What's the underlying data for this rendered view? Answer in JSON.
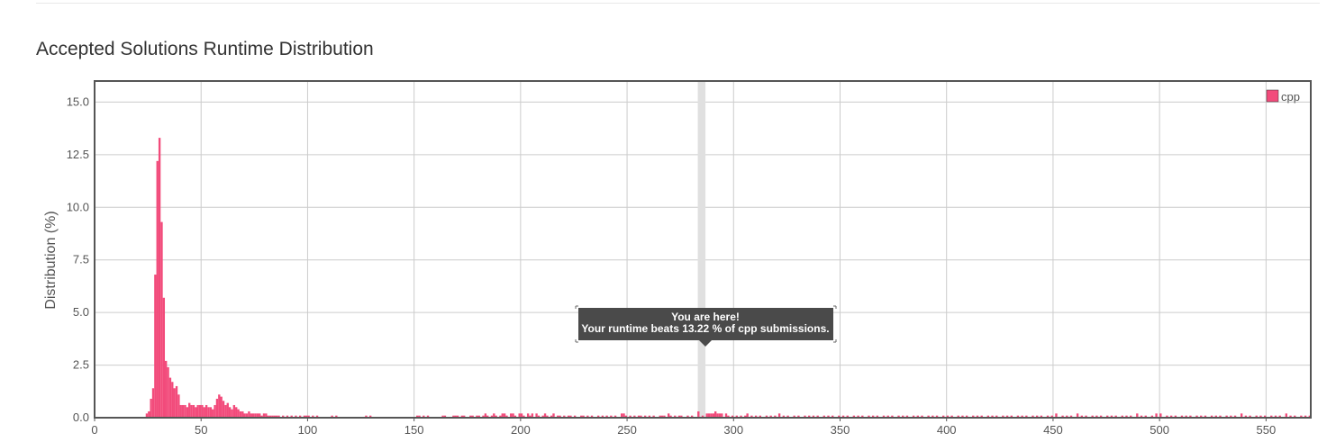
{
  "chart_data": {
    "type": "bar",
    "title": "Accepted Solutions Runtime Distribution",
    "xlabel": "",
    "ylabel": "Distribution (%)",
    "xlim": [
      0,
      571
    ],
    "ylim": [
      0,
      16
    ],
    "xticks": [
      "0",
      "50",
      "100",
      "150",
      "200",
      "250",
      "300",
      "350",
      "400",
      "450",
      "500",
      "550"
    ],
    "yticks": [
      "0.0",
      "2.5",
      "5.0",
      "7.5",
      "10.0",
      "12.5",
      "15.0"
    ],
    "grid": true,
    "legend_position": "top-right",
    "colors": {
      "bar": "#f24b7b",
      "highlight_band": "#e0e0e0",
      "tooltip_bg": "#4a4a4a",
      "frame": "#555555",
      "grid": "#cccccc"
    },
    "series": [
      {
        "name": "cpp",
        "bin_width": 1,
        "values": [
          [
            24,
            0.2
          ],
          [
            25,
            0.3
          ],
          [
            26,
            0.9
          ],
          [
            27,
            1.4
          ],
          [
            28,
            6.8
          ],
          [
            29,
            12.2
          ],
          [
            30,
            13.3
          ],
          [
            31,
            9.3
          ],
          [
            32,
            5.7
          ],
          [
            33,
            2.7
          ],
          [
            34,
            2.4
          ],
          [
            35,
            1.9
          ],
          [
            36,
            1.7
          ],
          [
            37,
            1.4
          ],
          [
            38,
            1.5
          ],
          [
            39,
            1.1
          ],
          [
            40,
            0.6
          ],
          [
            41,
            0.6
          ],
          [
            42,
            0.6
          ],
          [
            43,
            0.5
          ],
          [
            44,
            0.7
          ],
          [
            45,
            0.6
          ],
          [
            46,
            0.6
          ],
          [
            47,
            0.5
          ],
          [
            48,
            0.6
          ],
          [
            49,
            0.6
          ],
          [
            50,
            0.6
          ],
          [
            51,
            0.5
          ],
          [
            52,
            0.6
          ],
          [
            53,
            0.5
          ],
          [
            54,
            0.5
          ],
          [
            55,
            0.4
          ],
          [
            56,
            0.6
          ],
          [
            57,
            0.9
          ],
          [
            58,
            1.1
          ],
          [
            59,
            1.0
          ],
          [
            60,
            0.8
          ],
          [
            61,
            0.6
          ],
          [
            62,
            0.7
          ],
          [
            63,
            0.5
          ],
          [
            64,
            0.4
          ],
          [
            65,
            0.6
          ],
          [
            66,
            0.5
          ],
          [
            67,
            0.4
          ],
          [
            68,
            0.3
          ],
          [
            69,
            0.3
          ],
          [
            70,
            0.2
          ],
          [
            71,
            0.2
          ],
          [
            72,
            0.3
          ],
          [
            73,
            0.2
          ],
          [
            74,
            0.2
          ],
          [
            75,
            0.2
          ],
          [
            76,
            0.2
          ],
          [
            77,
            0.2
          ],
          [
            78,
            0.1
          ],
          [
            79,
            0.2
          ],
          [
            80,
            0.2
          ],
          [
            81,
            0.1
          ],
          [
            82,
            0.1
          ],
          [
            83,
            0.1
          ],
          [
            84,
            0.1
          ],
          [
            85,
            0.1
          ],
          [
            86,
            0.1
          ],
          [
            88,
            0.1
          ],
          [
            90,
            0.1
          ],
          [
            92,
            0.1
          ],
          [
            94,
            0.1
          ],
          [
            96,
            0.1
          ],
          [
            98,
            0.1
          ],
          [
            99,
            0.1
          ],
          [
            100,
            0.1
          ],
          [
            102,
            0.1
          ],
          [
            104,
            0.1
          ],
          [
            111,
            0.1
          ],
          [
            113,
            0.1
          ],
          [
            127,
            0.1
          ],
          [
            129,
            0.1
          ],
          [
            151,
            0.1
          ],
          [
            152,
            0.1
          ],
          [
            154,
            0.1
          ],
          [
            156,
            0.1
          ],
          [
            163,
            0.1
          ],
          [
            164,
            0.1
          ],
          [
            168,
            0.1
          ],
          [
            169,
            0.1
          ],
          [
            170,
            0.1
          ],
          [
            172,
            0.1
          ],
          [
            173,
            0.1
          ],
          [
            176,
            0.1
          ],
          [
            177,
            0.1
          ],
          [
            179,
            0.1
          ],
          [
            180,
            0.1
          ],
          [
            182,
            0.1
          ],
          [
            183,
            0.2
          ],
          [
            184,
            0.1
          ],
          [
            186,
            0.1
          ],
          [
            187,
            0.2
          ],
          [
            188,
            0.1
          ],
          [
            190,
            0.1
          ],
          [
            191,
            0.2
          ],
          [
            192,
            0.2
          ],
          [
            193,
            0.1
          ],
          [
            195,
            0.2
          ],
          [
            196,
            0.2
          ],
          [
            197,
            0.1
          ],
          [
            199,
            0.2
          ],
          [
            200,
            0.2
          ],
          [
            201,
            0.1
          ],
          [
            203,
            0.2
          ],
          [
            204,
            0.1
          ],
          [
            205,
            0.2
          ],
          [
            207,
            0.2
          ],
          [
            208,
            0.1
          ],
          [
            210,
            0.1
          ],
          [
            211,
            0.2
          ],
          [
            212,
            0.1
          ],
          [
            214,
            0.1
          ],
          [
            215,
            0.2
          ],
          [
            217,
            0.1
          ],
          [
            218,
            0.1
          ],
          [
            220,
            0.1
          ],
          [
            222,
            0.1
          ],
          [
            223,
            0.1
          ],
          [
            225,
            0.1
          ],
          [
            228,
            0.1
          ],
          [
            229,
            0.1
          ],
          [
            231,
            0.1
          ],
          [
            233,
            0.1
          ],
          [
            236,
            0.1
          ],
          [
            238,
            0.1
          ],
          [
            240,
            0.1
          ],
          [
            242,
            0.1
          ],
          [
            244,
            0.1
          ],
          [
            247,
            0.2
          ],
          [
            248,
            0.2
          ],
          [
            249,
            0.1
          ],
          [
            251,
            0.1
          ],
          [
            253,
            0.1
          ],
          [
            255,
            0.1
          ],
          [
            256,
            0.1
          ],
          [
            258,
            0.1
          ],
          [
            260,
            0.1
          ],
          [
            262,
            0.1
          ],
          [
            265,
            0.1
          ],
          [
            266,
            0.1
          ],
          [
            267,
            0.1
          ],
          [
            269,
            0.2
          ],
          [
            270,
            0.1
          ],
          [
            272,
            0.1
          ],
          [
            274,
            0.1
          ],
          [
            275,
            0.1
          ],
          [
            278,
            0.1
          ],
          [
            280,
            0.1
          ],
          [
            283,
            0.3
          ],
          [
            285,
            0.1
          ],
          [
            287,
            0.2
          ],
          [
            288,
            0.2
          ],
          [
            289,
            0.2
          ],
          [
            290,
            0.2
          ],
          [
            291,
            0.3
          ],
          [
            292,
            0.2
          ],
          [
            293,
            0.2
          ],
          [
            294,
            0.2
          ],
          [
            296,
            0.2
          ],
          [
            297,
            0.1
          ],
          [
            299,
            0.1
          ],
          [
            301,
            0.1
          ],
          [
            303,
            0.1
          ],
          [
            305,
            0.1
          ],
          [
            306,
            0.2
          ],
          [
            308,
            0.1
          ],
          [
            310,
            0.1
          ],
          [
            312,
            0.1
          ],
          [
            315,
            0.1
          ],
          [
            317,
            0.1
          ],
          [
            319,
            0.1
          ],
          [
            321,
            0.2
          ],
          [
            323,
            0.1
          ],
          [
            325,
            0.1
          ],
          [
            328,
            0.1
          ],
          [
            330,
            0.1
          ],
          [
            333,
            0.1
          ],
          [
            335,
            0.1
          ],
          [
            337,
            0.1
          ],
          [
            339,
            0.1
          ],
          [
            342,
            0.1
          ],
          [
            344,
            0.1
          ],
          [
            346,
            0.1
          ],
          [
            349,
            0.1
          ],
          [
            351,
            0.1
          ],
          [
            353,
            0.1
          ],
          [
            356,
            0.1
          ],
          [
            358,
            0.1
          ],
          [
            360,
            0.1
          ],
          [
            363,
            0.1
          ],
          [
            365,
            0.1
          ],
          [
            367,
            0.1
          ],
          [
            370,
            0.1
          ],
          [
            372,
            0.1
          ],
          [
            374,
            0.1
          ],
          [
            377,
            0.1
          ],
          [
            379,
            0.1
          ],
          [
            381,
            0.1
          ],
          [
            384,
            0.1
          ],
          [
            386,
            0.1
          ],
          [
            388,
            0.1
          ],
          [
            391,
            0.1
          ],
          [
            393,
            0.1
          ],
          [
            395,
            0.1
          ],
          [
            398,
            0.1
          ],
          [
            400,
            0.1
          ],
          [
            402,
            0.1
          ],
          [
            405,
            0.1
          ],
          [
            407,
            0.1
          ],
          [
            409,
            0.1
          ],
          [
            412,
            0.1
          ],
          [
            414,
            0.1
          ],
          [
            416,
            0.1
          ],
          [
            419,
            0.1
          ],
          [
            421,
            0.1
          ],
          [
            423,
            0.1
          ],
          [
            426,
            0.1
          ],
          [
            428,
            0.1
          ],
          [
            430,
            0.1
          ],
          [
            433,
            0.1
          ],
          [
            435,
            0.1
          ],
          [
            437,
            0.1
          ],
          [
            440,
            0.1
          ],
          [
            442,
            0.1
          ],
          [
            444,
            0.1
          ],
          [
            447,
            0.1
          ],
          [
            449,
            0.1
          ],
          [
            451,
            0.2
          ],
          [
            454,
            0.1
          ],
          [
            456,
            0.1
          ],
          [
            458,
            0.1
          ],
          [
            461,
            0.2
          ],
          [
            463,
            0.1
          ],
          [
            465,
            0.1
          ],
          [
            468,
            0.1
          ],
          [
            470,
            0.1
          ],
          [
            472,
            0.1
          ],
          [
            475,
            0.1
          ],
          [
            477,
            0.1
          ],
          [
            479,
            0.1
          ],
          [
            482,
            0.1
          ],
          [
            484,
            0.1
          ],
          [
            486,
            0.1
          ],
          [
            489,
            0.2
          ],
          [
            491,
            0.1
          ],
          [
            493,
            0.1
          ],
          [
            496,
            0.1
          ],
          [
            498,
            0.2
          ],
          [
            500,
            0.2
          ],
          [
            503,
            0.1
          ],
          [
            505,
            0.1
          ],
          [
            507,
            0.1
          ],
          [
            510,
            0.1
          ],
          [
            512,
            0.1
          ],
          [
            514,
            0.1
          ],
          [
            517,
            0.1
          ],
          [
            519,
            0.1
          ],
          [
            521,
            0.1
          ],
          [
            524,
            0.1
          ],
          [
            526,
            0.1
          ],
          [
            528,
            0.1
          ],
          [
            531,
            0.1
          ],
          [
            533,
            0.1
          ],
          [
            535,
            0.1
          ],
          [
            538,
            0.2
          ],
          [
            540,
            0.1
          ],
          [
            542,
            0.1
          ],
          [
            545,
            0.1
          ],
          [
            547,
            0.1
          ],
          [
            549,
            0.1
          ],
          [
            552,
            0.1
          ],
          [
            554,
            0.1
          ],
          [
            556,
            0.1
          ],
          [
            559,
            0.2
          ],
          [
            561,
            0.1
          ],
          [
            563,
            0.1
          ],
          [
            566,
            0.1
          ],
          [
            568,
            0.1
          ],
          [
            570,
            0.1
          ]
        ]
      }
    ],
    "highlight": {
      "x": 285,
      "tooltip_line1": "You are here!",
      "tooltip_line2": "Your runtime beats 13.22 % of cpp submissions."
    }
  }
}
